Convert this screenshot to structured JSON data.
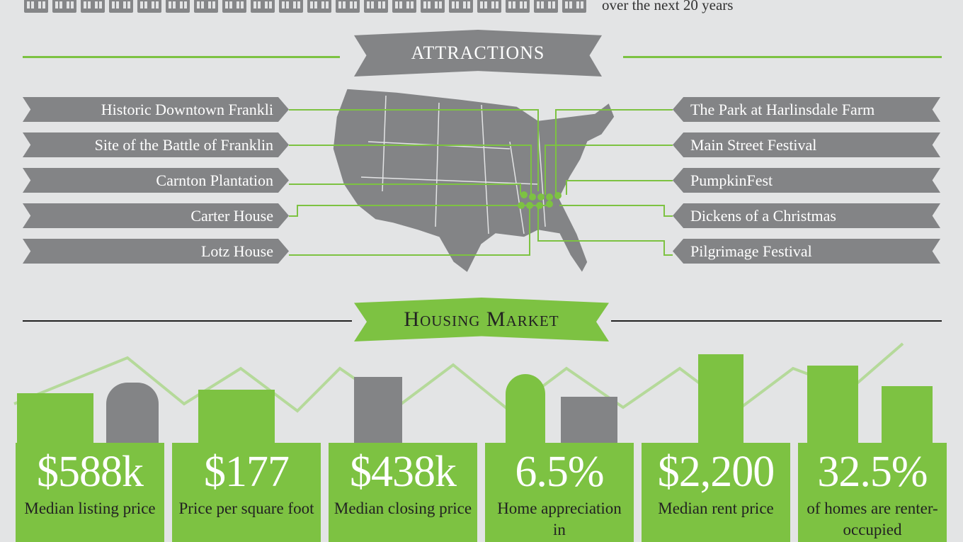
{
  "header": {
    "tagline": "over the next 20 years",
    "house_icon_count": 20
  },
  "attractions": {
    "title": "ATTRACTIONS",
    "left": [
      "Historic Downtown Frankli",
      "Site of the Battle of Franklin",
      "Carnton Plantation",
      "Carter House",
      "Lotz House"
    ],
    "right": [
      "The Park at Harlinsdale Farm",
      "Main Street Festival",
      "PumpkinFest",
      "Dickens of a Christmas",
      "Pilgrimage Festival"
    ]
  },
  "housing": {
    "title": "Housing Market",
    "cards": [
      {
        "value": "$588k",
        "label": "Median listing price"
      },
      {
        "value": "$177",
        "label": "Price per square foot"
      },
      {
        "value": "$438k",
        "label": "Median closing price"
      },
      {
        "value": "6.5%",
        "label": "Home appreciation in"
      },
      {
        "value": "$2,200",
        "label": "Median rent price"
      },
      {
        "value": "32.5%",
        "label": "of homes are renter-occupied"
      }
    ]
  },
  "colors": {
    "green": "#7dc242",
    "gray": "#838486",
    "background": "#e3e4e5"
  }
}
